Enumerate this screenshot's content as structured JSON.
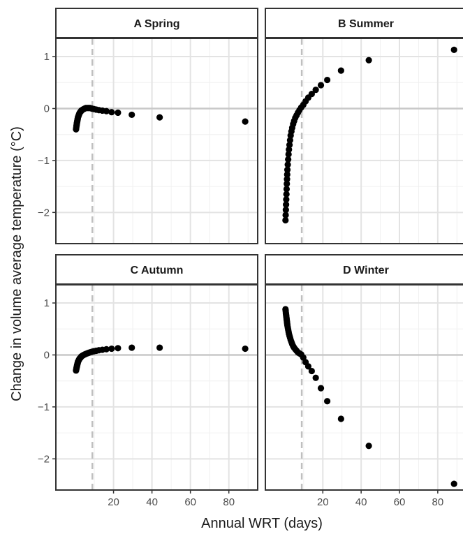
{
  "chart_data": {
    "type": "scatter",
    "xlabel": "Annual WRT (days)",
    "ylabel": "Change in volume average temperature (°C)",
    "xlim": [
      -10,
      95
    ],
    "ylim": [
      -2.6,
      1.35
    ],
    "x_ticks": [
      20,
      40,
      60,
      80
    ],
    "y_ticks": [
      1,
      0,
      -1,
      -2
    ],
    "reference_line": {
      "axis": "x",
      "value": 9,
      "style": "dashed",
      "color": "#bfbfbf"
    },
    "grid": true,
    "panels": [
      {
        "label": "A Spring",
        "points": [
          [
            0.5,
            -0.4
          ],
          [
            0.6,
            -0.37
          ],
          [
            0.7,
            -0.34
          ],
          [
            0.8,
            -0.32
          ],
          [
            0.9,
            -0.29
          ],
          [
            1.0,
            -0.27
          ],
          [
            1.1,
            -0.25
          ],
          [
            1.2,
            -0.23
          ],
          [
            1.3,
            -0.21
          ],
          [
            1.4,
            -0.19
          ],
          [
            1.5,
            -0.17
          ],
          [
            1.7,
            -0.15
          ],
          [
            1.9,
            -0.13
          ],
          [
            2.1,
            -0.11
          ],
          [
            2.3,
            -0.09
          ],
          [
            2.6,
            -0.07
          ],
          [
            2.9,
            -0.06
          ],
          [
            3.2,
            -0.04
          ],
          [
            3.6,
            -0.03
          ],
          [
            4.0,
            -0.02
          ],
          [
            4.5,
            -0.01
          ],
          [
            5.0,
            0.0
          ],
          [
            5.6,
            0.01
          ],
          [
            6.3,
            0.01
          ],
          [
            7.0,
            0.01
          ],
          [
            7.8,
            0.01
          ],
          [
            8.7,
            0.0
          ],
          [
            9.8,
            -0.01
          ],
          [
            11.0,
            -0.02
          ],
          [
            12.4,
            -0.03
          ],
          [
            14.2,
            -0.04
          ],
          [
            16.3,
            -0.05
          ],
          [
            19.0,
            -0.07
          ],
          [
            22.3,
            -0.08
          ],
          [
            29.5,
            -0.12
          ],
          [
            44.0,
            -0.17
          ],
          [
            88.5,
            -0.25
          ]
        ]
      },
      {
        "label": "B Summer",
        "points": [
          [
            0.5,
            -2.15
          ],
          [
            0.6,
            -2.05
          ],
          [
            0.7,
            -1.95
          ],
          [
            0.8,
            -1.85
          ],
          [
            0.9,
            -1.75
          ],
          [
            1.0,
            -1.65
          ],
          [
            1.1,
            -1.55
          ],
          [
            1.2,
            -1.45
          ],
          [
            1.3,
            -1.36
          ],
          [
            1.4,
            -1.27
          ],
          [
            1.5,
            -1.18
          ],
          [
            1.7,
            -1.08
          ],
          [
            1.9,
            -0.98
          ],
          [
            2.1,
            -0.88
          ],
          [
            2.3,
            -0.79
          ],
          [
            2.6,
            -0.7
          ],
          [
            2.9,
            -0.61
          ],
          [
            3.2,
            -0.52
          ],
          [
            3.6,
            -0.44
          ],
          [
            4.0,
            -0.37
          ],
          [
            4.5,
            -0.3
          ],
          [
            5.0,
            -0.24
          ],
          [
            5.6,
            -0.18
          ],
          [
            6.3,
            -0.13
          ],
          [
            7.0,
            -0.08
          ],
          [
            7.8,
            -0.03
          ],
          [
            8.7,
            0.02
          ],
          [
            9.8,
            0.07
          ],
          [
            11.0,
            0.14
          ],
          [
            12.4,
            0.21
          ],
          [
            14.2,
            0.28
          ],
          [
            16.3,
            0.36
          ],
          [
            19.0,
            0.45
          ],
          [
            22.3,
            0.55
          ],
          [
            29.5,
            0.73
          ],
          [
            44.0,
            0.93
          ],
          [
            88.5,
            1.13
          ]
        ]
      },
      {
        "label": "C Autumn",
        "points": [
          [
            0.5,
            -0.3
          ],
          [
            0.6,
            -0.28
          ],
          [
            0.7,
            -0.26
          ],
          [
            0.8,
            -0.24
          ],
          [
            0.9,
            -0.23
          ],
          [
            1.0,
            -0.21
          ],
          [
            1.1,
            -0.19
          ],
          [
            1.2,
            -0.18
          ],
          [
            1.3,
            -0.16
          ],
          [
            1.4,
            -0.15
          ],
          [
            1.5,
            -0.13
          ],
          [
            1.7,
            -0.12
          ],
          [
            1.9,
            -0.1
          ],
          [
            2.1,
            -0.09
          ],
          [
            2.3,
            -0.07
          ],
          [
            2.6,
            -0.06
          ],
          [
            2.9,
            -0.05
          ],
          [
            3.2,
            -0.03
          ],
          [
            3.6,
            -0.02
          ],
          [
            4.0,
            -0.01
          ],
          [
            4.5,
            0.0
          ],
          [
            5.0,
            0.01
          ],
          [
            5.6,
            0.02
          ],
          [
            6.3,
            0.03
          ],
          [
            7.0,
            0.04
          ],
          [
            7.8,
            0.05
          ],
          [
            8.7,
            0.06
          ],
          [
            9.8,
            0.07
          ],
          [
            11.0,
            0.08
          ],
          [
            12.4,
            0.09
          ],
          [
            14.2,
            0.1
          ],
          [
            16.3,
            0.11
          ],
          [
            19.0,
            0.12
          ],
          [
            22.3,
            0.13
          ],
          [
            29.5,
            0.14
          ],
          [
            44.0,
            0.14
          ],
          [
            88.5,
            0.12
          ]
        ]
      },
      {
        "label": "D Winter",
        "points": [
          [
            0.5,
            0.88
          ],
          [
            0.6,
            0.85
          ],
          [
            0.7,
            0.81
          ],
          [
            0.8,
            0.78
          ],
          [
            0.9,
            0.75
          ],
          [
            1.0,
            0.72
          ],
          [
            1.1,
            0.69
          ],
          [
            1.2,
            0.66
          ],
          [
            1.3,
            0.63
          ],
          [
            1.4,
            0.6
          ],
          [
            1.5,
            0.57
          ],
          [
            1.7,
            0.53
          ],
          [
            1.9,
            0.49
          ],
          [
            2.1,
            0.45
          ],
          [
            2.3,
            0.41
          ],
          [
            2.6,
            0.37
          ],
          [
            2.9,
            0.33
          ],
          [
            3.2,
            0.29
          ],
          [
            3.6,
            0.25
          ],
          [
            4.0,
            0.21
          ],
          [
            4.5,
            0.17
          ],
          [
            5.0,
            0.14
          ],
          [
            5.6,
            0.11
          ],
          [
            6.3,
            0.08
          ],
          [
            7.0,
            0.05
          ],
          [
            7.8,
            0.03
          ],
          [
            8.7,
            0.01
          ],
          [
            9.8,
            -0.05
          ],
          [
            11.0,
            -0.14
          ],
          [
            12.4,
            -0.22
          ],
          [
            14.2,
            -0.31
          ],
          [
            16.3,
            -0.44
          ],
          [
            19.0,
            -0.64
          ],
          [
            22.3,
            -0.89
          ],
          [
            29.5,
            -1.23
          ],
          [
            44.0,
            -1.75
          ],
          [
            88.5,
            -2.48
          ]
        ]
      }
    ]
  }
}
